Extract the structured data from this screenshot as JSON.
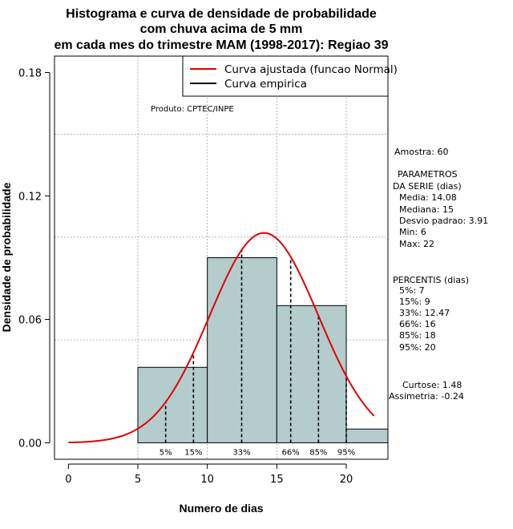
{
  "chart_data": {
    "type": "bar",
    "title": [
      "Histograma e curva de densidade de probabilidade",
      "com chuva acima de 5 mm",
      "em cada mes do trimestre MAM (1998-2017): Regiao 39"
    ],
    "xlabel": "Numero de dias",
    "ylabel": "Densidade de probabilidade",
    "xlim": [
      -1,
      23
    ],
    "ylim": [
      -0.008,
      0.188
    ],
    "x_ticks": [
      0,
      5,
      10,
      15,
      20
    ],
    "x_tick_labels": [
      "0",
      "5",
      "10",
      "15",
      "20"
    ],
    "y_ticks": [
      0.0,
      0.06,
      0.12,
      0.18
    ],
    "y_tick_labels": [
      "0.00",
      "0.06",
      "0.12",
      "0.18"
    ],
    "grid": true,
    "grid_x": [
      5,
      10,
      15,
      20
    ],
    "grid_y": [
      0.05,
      0.1,
      0.15
    ],
    "bins": [
      {
        "start": 5,
        "end": 10,
        "density": 0.0367
      },
      {
        "start": 10,
        "end": 15,
        "density": 0.09
      },
      {
        "start": 15,
        "end": 20,
        "density": 0.0667
      },
      {
        "start": 20,
        "end": 23,
        "density": 0.0067
      }
    ],
    "bar_color": "#b4cccc",
    "curve": {
      "name": "Curva ajustada (funcao Normal)",
      "distribution": "normal",
      "mean": 14.08,
      "sd": 3.91,
      "x_range": [
        0,
        22
      ],
      "color": "#e00000"
    },
    "empirical": {
      "name": "Curva empirica",
      "color": "#000000"
    },
    "legend": {
      "placement": "top-right",
      "entries": [
        "Curva ajustada (funcao Normal)",
        "Curva empirica"
      ]
    },
    "percentile_lines": [
      {
        "label": "5%",
        "x": 7
      },
      {
        "label": "15%",
        "x": 9
      },
      {
        "label": "33%",
        "x": 12.47
      },
      {
        "label": "66%",
        "x": 16
      },
      {
        "label": "85%",
        "x": 18
      },
      {
        "label": "95%",
        "x": 20
      }
    ],
    "annotation": "Produto: CPTEC/INPE"
  },
  "side_panel": {
    "sample": "Amostra: 60",
    "params_title_1": "PARAMETROS",
    "params_title_2": "DA SERIE (dias)",
    "params": [
      "Media: 14.08",
      "Mediana: 15",
      "Desvio padrao: 3.91",
      "Min: 6",
      "Max: 22"
    ],
    "percentis_title": "PERCENTIS (dias)",
    "percentis": [
      "5%: 7",
      "15%: 9",
      "33%: 12.47",
      "66%: 16",
      "85%: 18",
      "95%: 20"
    ],
    "curtose": "Curtose: 1.48",
    "assimetria": "Assimetria: -0.24"
  }
}
